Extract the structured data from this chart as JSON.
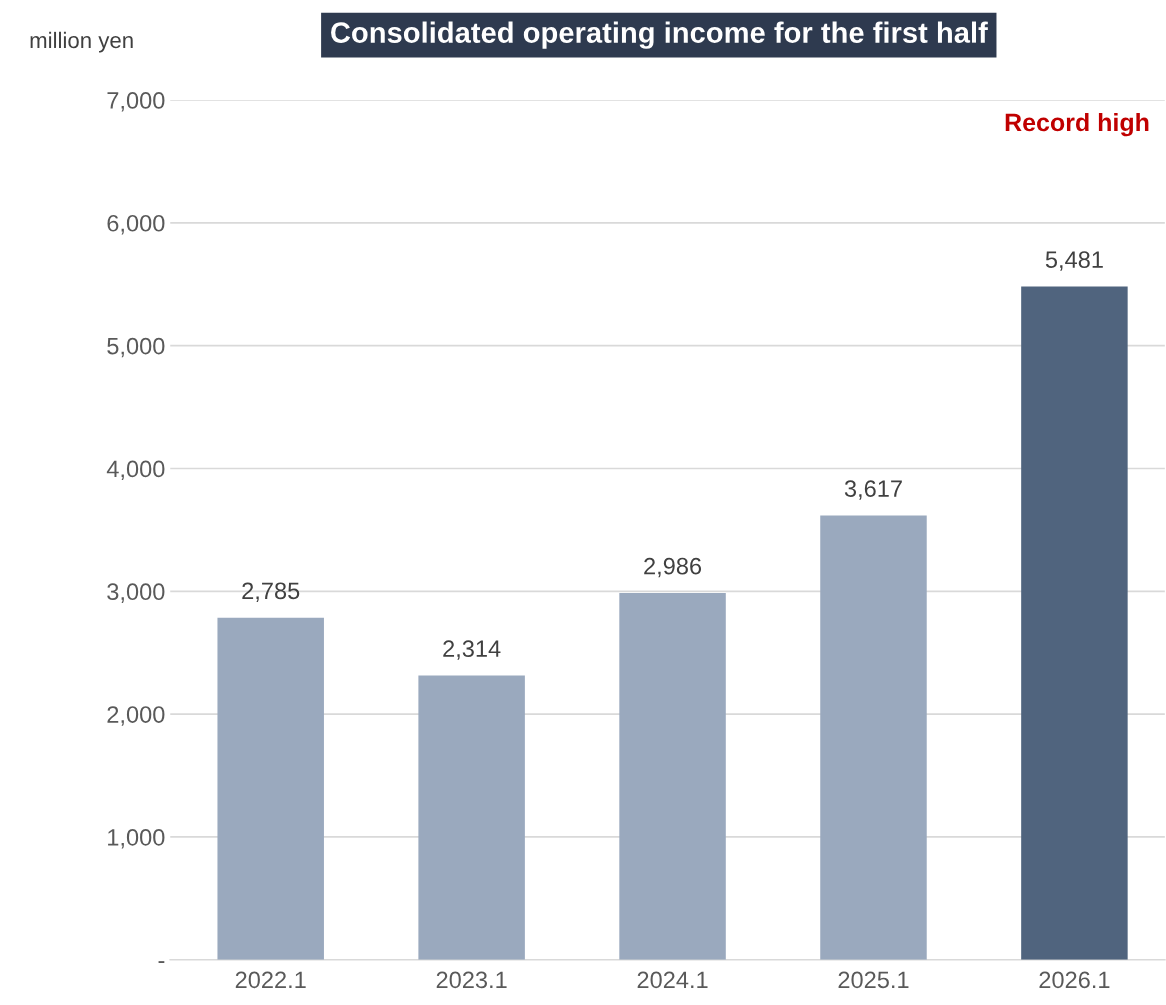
{
  "chart_data": {
    "type": "bar",
    "title": "Consolidated operating income for the first half",
    "ylabel": "million yen",
    "categories": [
      "2022.1",
      "2023.1",
      "2024.1",
      "2025.1",
      "2026.1"
    ],
    "values": [
      2785,
      2314,
      2986,
      3617,
      5481
    ],
    "colors": [
      "#9aa9be",
      "#9aa9be",
      "#9aa9be",
      "#9aa9be",
      "#50647e"
    ],
    "value_labels": [
      "2,785",
      "2,314",
      "2,986",
      "3,617",
      "5,481"
    ],
    "annotations": [
      "Record high"
    ],
    "ylim": [
      0,
      7000
    ],
    "yticks": [
      {
        "value": 0,
        "label": "-"
      },
      {
        "value": 1000,
        "label": "1,000"
      },
      {
        "value": 2000,
        "label": "2,000"
      },
      {
        "value": 3000,
        "label": "3,000"
      },
      {
        "value": 4000,
        "label": "4,000"
      },
      {
        "value": 5000,
        "label": "5,000"
      },
      {
        "value": 6000,
        "label": "6,000"
      },
      {
        "value": 7000,
        "label": "7,000"
      }
    ],
    "grid": "y",
    "legend": false
  }
}
